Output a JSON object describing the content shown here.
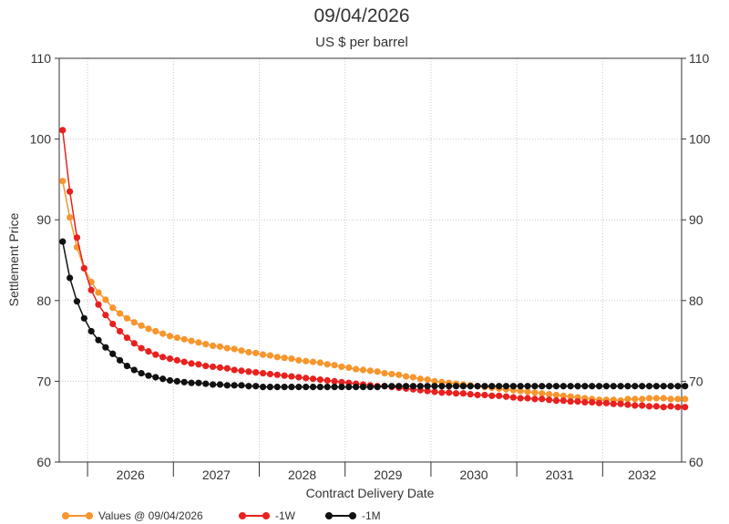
{
  "chart_data": {
    "type": "line",
    "title": "09/04/2026",
    "subtitle": "US $ per barrel",
    "xlabel": "Contract Delivery Date",
    "ylabel": "Settlement Price",
    "x_tick_labels": [
      "2026",
      "2027",
      "2028",
      "2029",
      "2030",
      "2031",
      "2032"
    ],
    "x_range_years": [
      2025.67,
      2032.92
    ],
    "ylim": [
      60,
      110
    ],
    "y_ticks": [
      60,
      70,
      80,
      90,
      100,
      110
    ],
    "y_axis_right_mirror": true,
    "grid": "dotted",
    "legend_position": "bottom-left",
    "series": [
      {
        "name": "Values @ 09/04/2026",
        "color": "#F7962D",
        "start_year": 2025.71,
        "step_years": 0.08333,
        "values": [
          94.8,
          90.3,
          86.6,
          84.0,
          82.3,
          81.0,
          80.1,
          79.1,
          78.4,
          77.8,
          77.3,
          76.9,
          76.5,
          76.2,
          75.9,
          75.6,
          75.4,
          75.2,
          75.0,
          74.8,
          74.6,
          74.4,
          74.3,
          74.1,
          74.0,
          73.8,
          73.6,
          73.5,
          73.3,
          73.2,
          73.0,
          72.9,
          72.8,
          72.6,
          72.5,
          72.4,
          72.3,
          72.1,
          72.0,
          71.8,
          71.7,
          71.5,
          71.4,
          71.3,
          71.2,
          71.0,
          70.9,
          70.8,
          70.6,
          70.5,
          70.3,
          70.2,
          70.0,
          69.9,
          69.8,
          69.7,
          69.6,
          69.5,
          69.4,
          69.3,
          69.2,
          69.1,
          69.0,
          68.9,
          68.8,
          68.7,
          68.6,
          68.5,
          68.4,
          68.3,
          68.2,
          68.1,
          68.0,
          67.9,
          67.8,
          67.7,
          67.7,
          67.7,
          67.6,
          67.8,
          67.8,
          67.8,
          67.9,
          67.9,
          67.9,
          67.8,
          67.8,
          67.8
        ]
      },
      {
        "name": "-1W",
        "color": "#E8211F",
        "start_year": 2025.71,
        "step_years": 0.08333,
        "values": [
          101.1,
          93.5,
          87.8,
          84.0,
          81.3,
          79.5,
          78.2,
          77.1,
          76.2,
          75.4,
          74.7,
          74.1,
          73.7,
          73.3,
          73.0,
          72.8,
          72.6,
          72.4,
          72.2,
          72.1,
          71.9,
          71.8,
          71.7,
          71.6,
          71.4,
          71.3,
          71.2,
          71.1,
          71.0,
          70.9,
          70.8,
          70.7,
          70.6,
          70.5,
          70.4,
          70.3,
          70.2,
          70.1,
          70.0,
          69.9,
          69.8,
          69.7,
          69.6,
          69.5,
          69.4,
          69.4,
          69.3,
          69.2,
          69.1,
          69.0,
          68.9,
          68.8,
          68.7,
          68.6,
          68.6,
          68.5,
          68.5,
          68.4,
          68.3,
          68.3,
          68.2,
          68.2,
          68.1,
          68.0,
          67.9,
          67.9,
          67.8,
          67.8,
          67.7,
          67.6,
          67.6,
          67.5,
          67.5,
          67.4,
          67.4,
          67.3,
          67.3,
          67.2,
          67.2,
          67.1,
          67.0,
          67.0,
          66.9,
          66.9,
          66.8,
          66.9,
          66.8,
          66.8
        ]
      },
      {
        "name": "-1M",
        "color": "#111111",
        "start_year": 2025.71,
        "step_years": 0.08333,
        "values": [
          87.3,
          82.8,
          79.9,
          77.8,
          76.2,
          75.1,
          74.2,
          73.4,
          72.6,
          71.9,
          71.4,
          71.0,
          70.7,
          70.5,
          70.3,
          70.1,
          70.0,
          69.9,
          69.8,
          69.8,
          69.7,
          69.6,
          69.6,
          69.5,
          69.5,
          69.5,
          69.4,
          69.4,
          69.3,
          69.3,
          69.3,
          69.3,
          69.3,
          69.3,
          69.3,
          69.3,
          69.3,
          69.3,
          69.3,
          69.3,
          69.3,
          69.3,
          69.3,
          69.3,
          69.3,
          69.4,
          69.4,
          69.4,
          69.4,
          69.4,
          69.4,
          69.4,
          69.4,
          69.4,
          69.4,
          69.4,
          69.4,
          69.4,
          69.4,
          69.4,
          69.4,
          69.4,
          69.4,
          69.4,
          69.4,
          69.4,
          69.4,
          69.4,
          69.4,
          69.4,
          69.4,
          69.4,
          69.4,
          69.4,
          69.4,
          69.4,
          69.4,
          69.4,
          69.4,
          69.4,
          69.4,
          69.4,
          69.4,
          69.4,
          69.4,
          69.4,
          69.4,
          69.4
        ]
      }
    ]
  }
}
